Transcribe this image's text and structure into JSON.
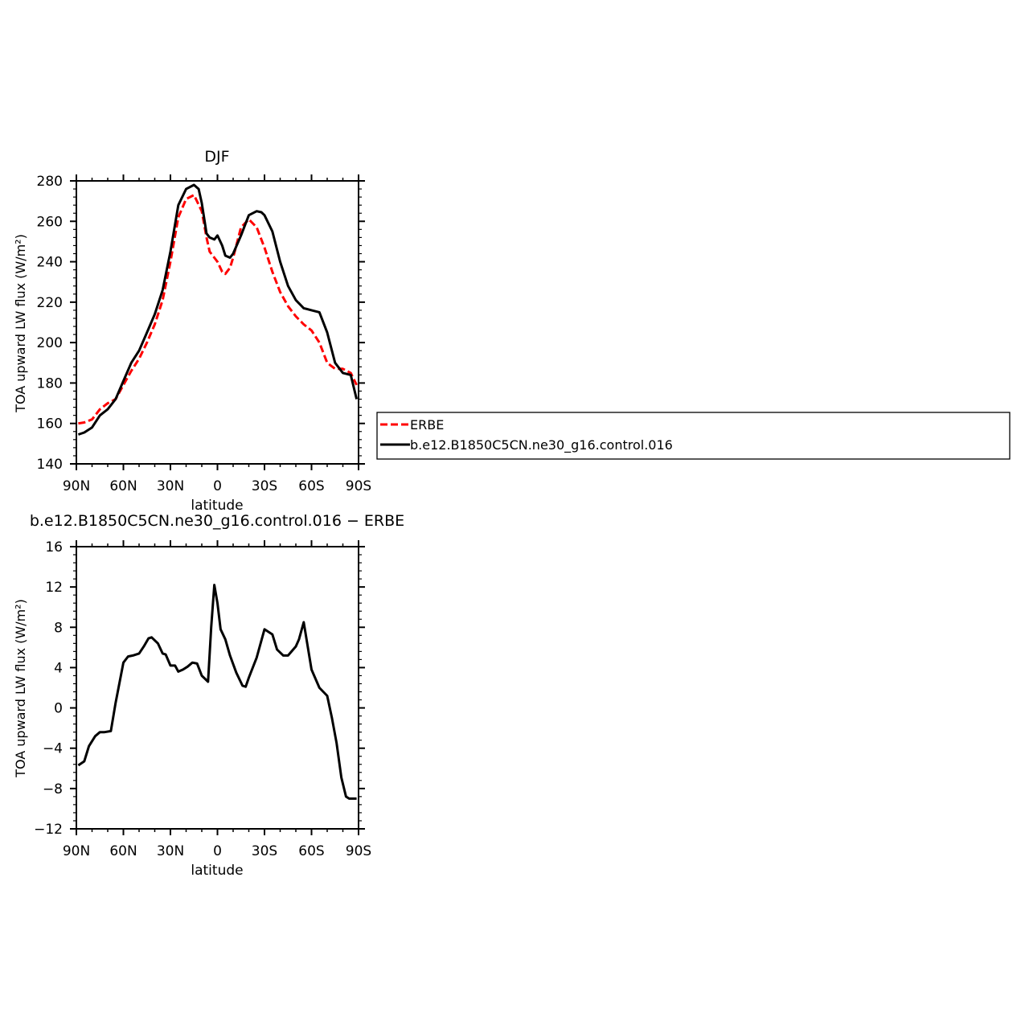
{
  "chart_data": [
    {
      "type": "line",
      "title": "DJF",
      "xlabel": "latitude",
      "ylabel": "TOA upward LW flux (W/m²)",
      "xlim": [
        90,
        -90
      ],
      "ylim": [
        140,
        280
      ],
      "x_ticks": [
        {
          "value": 90,
          "label": "90N"
        },
        {
          "value": 60,
          "label": "60N"
        },
        {
          "value": 30,
          "label": "30N"
        },
        {
          "value": 0,
          "label": "0"
        },
        {
          "value": -30,
          "label": "30S"
        },
        {
          "value": -60,
          "label": "60S"
        },
        {
          "value": -90,
          "label": "90S"
        }
      ],
      "y_ticks": [
        140,
        160,
        180,
        200,
        220,
        240,
        260,
        280
      ],
      "legend_placement": "right",
      "series": [
        {
          "name": "ERBE",
          "color": "#ff0000",
          "dash": "dashed",
          "x": [
            88.75,
            85,
            80,
            75,
            70,
            65,
            60,
            55,
            50,
            45,
            40,
            35,
            30,
            25,
            20,
            15,
            10,
            7,
            5,
            2,
            0,
            -3,
            -5,
            -8,
            -10,
            -15,
            -20,
            -25,
            -30,
            -35,
            -40,
            -45,
            -50,
            -55,
            -60,
            -65,
            -70,
            -75,
            -80,
            -85,
            -88.75
          ],
          "y": [
            160,
            160.5,
            162,
            167,
            170,
            172,
            179,
            186,
            192,
            200,
            209,
            221,
            240,
            262,
            271,
            273,
            265,
            252,
            245,
            242,
            240,
            235,
            234,
            237,
            242,
            257,
            261,
            257,
            247,
            235,
            225,
            218,
            213,
            209,
            206,
            200,
            190,
            187,
            187,
            185,
            179
          ]
        },
        {
          "name": "b.e12.B1850C5CN.ne30_g16.control.016",
          "color": "#000000",
          "dash": "solid",
          "x": [
            88.75,
            85,
            80,
            75,
            70,
            65,
            60,
            55,
            50,
            45,
            40,
            35,
            30,
            25,
            20,
            15,
            12,
            10,
            7,
            5,
            2,
            0,
            -3,
            -5,
            -8,
            -10,
            -15,
            -20,
            -25,
            -28,
            -30,
            -35,
            -40,
            -45,
            -50,
            -55,
            -60,
            -65,
            -70,
            -75,
            -80,
            -85,
            -88.75
          ],
          "y": [
            154.5,
            155.5,
            158,
            164,
            167,
            172,
            181,
            190,
            196,
            205,
            214,
            226,
            245,
            268,
            276,
            278,
            276,
            269,
            254,
            252,
            251,
            253,
            248,
            243,
            242,
            244,
            253,
            263,
            265,
            264.5,
            263,
            255,
            240,
            228,
            221,
            217,
            216,
            215,
            205,
            190,
            185,
            184,
            172
          ]
        }
      ]
    },
    {
      "type": "line",
      "title": "b.e12.B1850C5CN.ne30_g16.control.016 − ERBE",
      "xlabel": "latitude",
      "ylabel": "TOA upward LW flux (W/m²)",
      "xlim": [
        90,
        -90
      ],
      "ylim": [
        -12,
        16
      ],
      "x_ticks": [
        {
          "value": 90,
          "label": "90N"
        },
        {
          "value": 60,
          "label": "60N"
        },
        {
          "value": 30,
          "label": "30N"
        },
        {
          "value": 0,
          "label": "0"
        },
        {
          "value": -30,
          "label": "30S"
        },
        {
          "value": -60,
          "label": "60S"
        },
        {
          "value": -90,
          "label": "90S"
        }
      ],
      "y_ticks": [
        -12,
        -8,
        -4,
        0,
        4,
        8,
        12,
        16
      ],
      "series": [
        {
          "color": "#000000",
          "x": [
            88.75,
            85,
            82,
            78,
            75,
            72,
            68,
            65,
            60,
            57,
            54,
            50,
            47,
            44,
            42,
            38,
            35,
            33,
            30,
            27,
            25,
            22,
            19,
            16,
            13,
            10,
            6,
            4,
            2,
            0,
            -2,
            -5,
            -8,
            -12,
            -16,
            -18,
            -20,
            -25,
            -30,
            -35,
            -38,
            -42,
            -45,
            -50,
            -52,
            -55,
            -60,
            -65,
            -70,
            -73,
            -76,
            -79,
            -82,
            -84,
            -86,
            -88.75
          ],
          "y": [
            -5.7,
            -5.3,
            -3.8,
            -2.8,
            -2.4,
            -2.4,
            -2.3,
            0.5,
            4.5,
            5.1,
            5.2,
            5.4,
            6.1,
            6.9,
            7,
            6.4,
            5.4,
            5.3,
            4.2,
            4.2,
            3.6,
            3.8,
            4.1,
            4.5,
            4.4,
            3.2,
            2.6,
            8,
            12.2,
            10.4,
            7.8,
            6.8,
            5.2,
            3.5,
            2.2,
            2.1,
            3,
            5,
            7.8,
            7.3,
            5.8,
            5.2,
            5.2,
            6.1,
            6.8,
            8.5,
            3.8,
            2,
            1.2,
            -1,
            -3.5,
            -6.9,
            -8.8,
            -9,
            -9,
            -9
          ]
        }
      ]
    }
  ]
}
